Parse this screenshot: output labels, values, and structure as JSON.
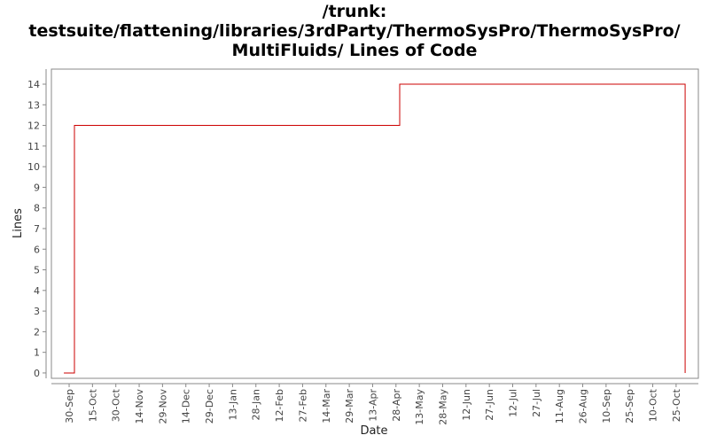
{
  "chart_data": {
    "type": "line",
    "title": "/trunk: testsuite/flattening/libraries/3rdParty/ThermoSysPro/ThermoSysPro/ MultiFluids/ Lines of Code",
    "x_label": "Date",
    "y_label": "Lines",
    "x": [
      -3.4,
      3.4,
      3.4,
      212.4,
      212.4,
      395.8,
      395.8
    ],
    "series": [
      {
        "name": "Lines",
        "color": "#cc0000",
        "values": [
          0,
          0,
          12,
          12,
          14,
          14,
          0
        ]
      }
    ],
    "xlim": [
      -11.4,
      404.3
    ],
    "xticks": [
      {
        "value": 0,
        "label": "30-Sep"
      },
      {
        "value": 15,
        "label": "15-Oct"
      },
      {
        "value": 30,
        "label": "30-Oct"
      },
      {
        "value": 45,
        "label": "14-Nov"
      },
      {
        "value": 60,
        "label": "29-Nov"
      },
      {
        "value": 75,
        "label": "14-Dec"
      },
      {
        "value": 90,
        "label": "29-Dec"
      },
      {
        "value": 105,
        "label": "13-Jan"
      },
      {
        "value": 120,
        "label": "28-Jan"
      },
      {
        "value": 135,
        "label": "12-Feb"
      },
      {
        "value": 150,
        "label": "27-Feb"
      },
      {
        "value": 165,
        "label": "14-Mar"
      },
      {
        "value": 180,
        "label": "29-Mar"
      },
      {
        "value": 195,
        "label": "13-Apr"
      },
      {
        "value": 210,
        "label": "28-Apr"
      },
      {
        "value": 225,
        "label": "13-May"
      },
      {
        "value": 240,
        "label": "28-May"
      },
      {
        "value": 255,
        "label": "12-Jun"
      },
      {
        "value": 270,
        "label": "27-Jun"
      },
      {
        "value": 285,
        "label": "12-Jul"
      },
      {
        "value": 300,
        "label": "27-Jul"
      },
      {
        "value": 315,
        "label": "11-Aug"
      },
      {
        "value": 330,
        "label": "26-Aug"
      },
      {
        "value": 345,
        "label": "10-Sep"
      },
      {
        "value": 360,
        "label": "25-Sep"
      },
      {
        "value": 375,
        "label": "10-Oct"
      },
      {
        "value": 390,
        "label": "25-Oct"
      }
    ],
    "ylim": [
      -0.26,
      14.73
    ],
    "yticks": [
      0,
      1,
      2,
      3,
      4,
      5,
      6,
      7,
      8,
      9,
      10,
      11,
      12,
      13,
      14
    ],
    "grid": false
  }
}
